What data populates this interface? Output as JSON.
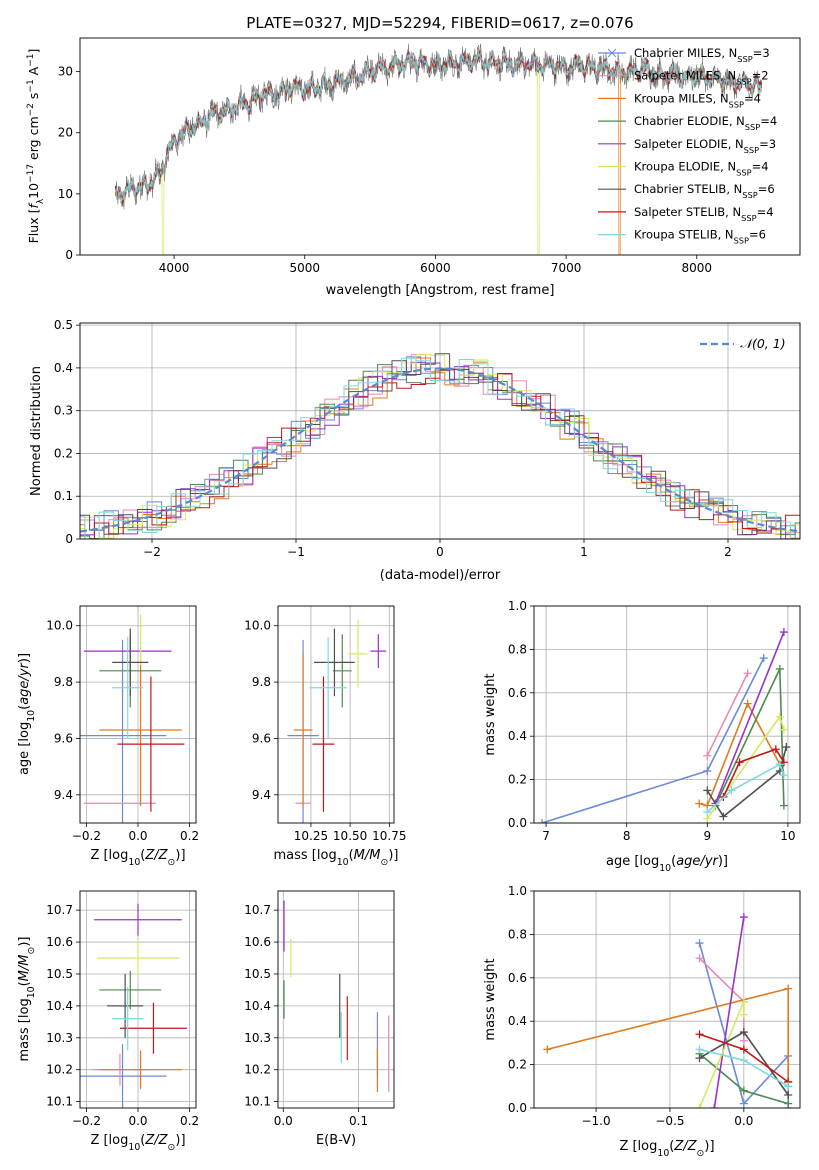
{
  "figure_title": "PLATE=0327, MJD=52294, FIBERID=0617, z=0.076",
  "colors": [
    "#6a8ad8",
    "#e8862a",
    "#e07a20",
    "#4f8a4f",
    "#9932cc",
    "#d4e860",
    "#505050",
    "#c01818",
    "#7fd8e0",
    "#e888b8"
  ],
  "chart_data": [
    {
      "type": "line",
      "id": "spectrum",
      "title": "PLATE=0327, MJD=52294, FIBERID=0617, z=0.076",
      "xlabel": "wavelength [Angstrom, rest frame]",
      "ylabel": "Flux [fλ10⁻¹⁷ erg cm⁻² s⁻¹ A⁻¹]",
      "xlim": [
        3280,
        8790
      ],
      "ylim": [
        0,
        35.5
      ],
      "xticks": [
        4000,
        5000,
        6000,
        7000,
        8000
      ],
      "yticks": [
        0,
        10,
        20,
        30
      ],
      "grid": false,
      "legend_position": "top-right",
      "anchor_x": [
        3550,
        3700,
        3800,
        3900,
        3950,
        4000,
        4100,
        4200,
        4300,
        4400,
        4500,
        4600,
        4700,
        4800,
        4900,
        5000,
        5100,
        5200,
        5300,
        5400,
        5500,
        5600,
        5700,
        5800,
        5900,
        6000,
        6100,
        6200,
        6300,
        6400,
        6500,
        6600,
        6700,
        6800,
        6900,
        7000,
        7100,
        7200,
        7300,
        7400,
        7500,
        7600,
        7700,
        7800,
        7900,
        8000,
        8100,
        8200,
        8300,
        8400,
        8500
      ],
      "anchor_y": [
        9.5,
        11.0,
        11.5,
        13.5,
        16.5,
        18.5,
        20.5,
        21.5,
        23.0,
        23.5,
        24.5,
        25.0,
        26.5,
        26.5,
        27.5,
        27.0,
        27.5,
        28.0,
        28.5,
        29.0,
        30.0,
        30.5,
        31.0,
        31.5,
        31.5,
        31.0,
        31.5,
        31.5,
        32.0,
        31.5,
        31.5,
        31.0,
        31.5,
        31.0,
        31.0,
        30.5,
        31.0,
        30.5,
        30.5,
        30.0,
        30.0,
        30.5,
        29.5,
        29.5,
        29.0,
        29.5,
        29.0,
        28.5,
        28.0,
        28.0,
        27.5
      ],
      "series": [
        {
          "name": "Chabrier MILES, NSSP=3",
          "color": "#6a8ad8"
        },
        {
          "name": "Salpeter MILES, NSSP=2",
          "color": "#e888b8"
        },
        {
          "name": "Kroupa MILES, NSSP=4",
          "color": "#e07a20"
        },
        {
          "name": "Chabrier ELODIE, NSSP=4",
          "color": "#4f8a4f"
        },
        {
          "name": "Salpeter ELODIE, NSSP=3",
          "color": "#9932cc"
        },
        {
          "name": "Kroupa ELODIE, NSSP=4",
          "color": "#d4e860"
        },
        {
          "name": "Chabrier STELIB, NSSP=6",
          "color": "#505050"
        },
        {
          "name": "Salpeter STELIB, NSSP=4",
          "color": "#c01818"
        },
        {
          "name": "Kroupa STELIB, NSSP=6",
          "color": "#7fd8e0"
        }
      ],
      "legend": [
        {
          "pre": "Chabrier MILES, N",
          "sub": "SSP",
          "post": "=3"
        },
        {
          "pre": "Salpeter MILES, N",
          "sub": "SSP",
          "post": "=2"
        },
        {
          "pre": "Kroupa MILES, N",
          "sub": "SSP",
          "post": "=4"
        },
        {
          "pre": "Chabrier ELODIE, N",
          "sub": "SSP",
          "post": "=4"
        },
        {
          "pre": "Salpeter ELODIE, N",
          "sub": "SSP",
          "post": "=3"
        },
        {
          "pre": "Kroupa ELODIE, N",
          "sub": "SSP",
          "post": "=4"
        },
        {
          "pre": "Chabrier STELIB, N",
          "sub": "SSP",
          "post": "=6"
        },
        {
          "pre": "Salpeter STELIB, N",
          "sub": "SSP",
          "post": "=4"
        },
        {
          "pre": "Kroupa STELIB, N",
          "sub": "SSP",
          "post": "=6"
        }
      ]
    },
    {
      "type": "histogram",
      "id": "residuals",
      "xlabel": "(data-model)/error",
      "ylabel": "Normed distribution",
      "xlim": [
        -2.5,
        2.5
      ],
      "ylim": [
        0,
        0.505
      ],
      "xticks": [
        -2,
        -1,
        0,
        1,
        2
      ],
      "yticks": [
        0.0,
        0.1,
        0.2,
        0.3,
        0.4,
        0.5
      ],
      "grid": true,
      "legend_position": "top-right",
      "legend_label": "𝒩(0, 1)",
      "bin_width": 0.1,
      "series_colors": [
        "#6a8ad8",
        "#e888b8",
        "#e07a20",
        "#4f8a4f",
        "#9932cc",
        "#d4e860",
        "#505050",
        "#c01818",
        "#7fd8e0"
      ]
    },
    {
      "type": "scatter",
      "id": "age-vs-Z",
      "xlabel": "Z [log10(Z/Z⊙)]",
      "ylabel": "age  [log10(age/yr)]",
      "xlim": [
        -0.225,
        0.225
      ],
      "ylim": [
        9.3,
        10.07
      ],
      "xticks": [
        -0.2,
        0.0,
        0.2
      ],
      "xticklabels": [
        "−0.2",
        "0.0",
        "0.2"
      ],
      "yticks": [
        9.4,
        9.6,
        9.8,
        10.0
      ],
      "yticklabels": [
        "9.4",
        "9.6",
        "9.8",
        "10.0"
      ],
      "grid": true,
      "points": [
        {
          "x": -0.06,
          "xerr": 0.17,
          "y": 9.61,
          "yerr": 0.34,
          "color": "#6a8ad8"
        },
        {
          "x": -0.07,
          "xerr": 0.14,
          "y": 9.37,
          "yerr": 0.0,
          "color": "#e888b8"
        },
        {
          "x": 0.01,
          "xerr": 0.16,
          "y": 9.63,
          "yerr": 0.27,
          "color": "#e07a20"
        },
        {
          "x": -0.03,
          "xerr": 0.12,
          "y": 9.84,
          "yerr": 0.13,
          "color": "#4f8a4f"
        },
        {
          "x": -0.04,
          "xerr": 0.17,
          "y": 9.91,
          "yerr": 0.0,
          "color": "#9932cc"
        },
        {
          "x": 0.01,
          "xerr": 0.0,
          "y": 9.95,
          "yerr": 0.09,
          "color": "#d4e860"
        },
        {
          "x": -0.03,
          "xerr": 0.07,
          "y": 9.87,
          "yerr": 0.12,
          "color": "#505050"
        },
        {
          "x": 0.05,
          "xerr": 0.13,
          "y": 9.58,
          "yerr": 0.24,
          "color": "#c01818"
        },
        {
          "x": -0.04,
          "xerr": 0.06,
          "y": 9.78,
          "yerr": 0.18,
          "color": "#7fd8e0"
        }
      ]
    },
    {
      "type": "scatter",
      "id": "age-vs-mass",
      "xlabel": "mass [log10(M/M⊙)]",
      "xlim": [
        10.04,
        10.78
      ],
      "ylim": [
        9.3,
        10.07
      ],
      "xticks": [
        10.25,
        10.5,
        10.75
      ],
      "xticklabels": [
        "10.25",
        "10.50",
        "10.75"
      ],
      "yticks": [
        9.4,
        9.6,
        9.8,
        10.0
      ],
      "yticklabels": [
        "9.4",
        "9.6",
        "9.8",
        "10.0"
      ],
      "grid": true,
      "points": [
        {
          "x": 10.2,
          "xerr": 0.1,
          "y": 9.61,
          "yerr": 0.34,
          "color": "#6a8ad8"
        },
        {
          "x": 10.2,
          "xerr": 0.05,
          "y": 9.37,
          "yerr": 0.0,
          "color": "#e888b8"
        },
        {
          "x": 10.2,
          "xerr": 0.06,
          "y": 9.63,
          "yerr": 0.27,
          "color": "#e07a20"
        },
        {
          "x": 10.45,
          "xerr": 0.06,
          "y": 9.84,
          "yerr": 0.13,
          "color": "#4f8a4f"
        },
        {
          "x": 10.68,
          "xerr": 0.05,
          "y": 9.91,
          "yerr": 0.06,
          "color": "#9932cc"
        },
        {
          "x": 10.55,
          "xerr": 0.06,
          "y": 9.9,
          "yerr": 0.12,
          "color": "#d4e860"
        },
        {
          "x": 10.4,
          "xerr": 0.13,
          "y": 9.87,
          "yerr": 0.12,
          "color": "#505050"
        },
        {
          "x": 10.33,
          "xerr": 0.07,
          "y": 9.58,
          "yerr": 0.24,
          "color": "#c01818"
        },
        {
          "x": 10.36,
          "xerr": 0.12,
          "y": 9.78,
          "yerr": 0.18,
          "color": "#7fd8e0"
        }
      ]
    },
    {
      "type": "line",
      "id": "weight-vs-age",
      "xlabel": "age  [log10(age/yr)]",
      "ylabel": "mass weight",
      "xlim": [
        6.85,
        10.15
      ],
      "ylim": [
        0,
        1.0
      ],
      "xticks": [
        7,
        8,
        9,
        10
      ],
      "xticklabels": [
        "7",
        "8",
        "9",
        "10"
      ],
      "yticks": [
        0.0,
        0.2,
        0.4,
        0.6,
        0.8,
        1.0
      ],
      "yticklabels": [
        "0.0",
        "0.2",
        "0.4",
        "0.6",
        "0.8",
        "1.0"
      ],
      "grid": true,
      "series": [
        {
          "color": "#6a8ad8",
          "x": [
            6.95,
            9.0,
            9.7
          ],
          "y": [
            0.0,
            0.24,
            0.76
          ]
        },
        {
          "color": "#e888b8",
          "x": [
            9.0,
            9.5
          ],
          "y": [
            0.31,
            0.69
          ]
        },
        {
          "color": "#e07a20",
          "x": [
            8.9,
            9.0,
            9.5,
            9.9
          ],
          "y": [
            0.09,
            0.08,
            0.55,
            0.27
          ]
        },
        {
          "color": "#4f8a4f",
          "x": [
            9.1,
            9.9,
            9.95
          ],
          "y": [
            0.08,
            0.71,
            0.08
          ]
        },
        {
          "color": "#9932cc",
          "x": [
            9.1,
            9.95
          ],
          "y": [
            0.09,
            0.88
          ]
        },
        {
          "color": "#d4e860",
          "x": [
            9.0,
            9.9,
            9.95
          ],
          "y": [
            0.02,
            0.49,
            0.43
          ]
        },
        {
          "color": "#505050",
          "x": [
            9.0,
            9.2,
            9.9,
            9.98
          ],
          "y": [
            0.15,
            0.03,
            0.24,
            0.35
          ]
        },
        {
          "color": "#c01818",
          "x": [
            9.2,
            9.4,
            9.85,
            9.95
          ],
          "y": [
            0.12,
            0.28,
            0.34,
            0.28
          ]
        },
        {
          "color": "#7fd8e0",
          "x": [
            9.0,
            9.3,
            9.9,
            9.95
          ],
          "y": [
            0.05,
            0.15,
            0.27,
            0.22
          ]
        }
      ]
    },
    {
      "type": "scatter",
      "id": "mass-vs-Z",
      "xlabel": "Z [log10(Z/Z⊙)]",
      "ylabel": "mass [log10(M/M⊙)]",
      "xlim": [
        -0.225,
        0.225
      ],
      "ylim": [
        10.08,
        10.76
      ],
      "xticks": [
        -0.2,
        0.0,
        0.2
      ],
      "xticklabels": [
        "−0.2",
        "0.0",
        "0.2"
      ],
      "yticks": [
        10.1,
        10.2,
        10.3,
        10.4,
        10.5,
        10.6,
        10.7
      ],
      "yticklabels": [
        "10.1",
        "10.2",
        "10.3",
        "10.4",
        "10.5",
        "10.6",
        "10.7"
      ],
      "grid": true,
      "points": [
        {
          "x": -0.06,
          "xerr": 0.17,
          "y": 10.18,
          "yerr": 0.1,
          "color": "#6a8ad8"
        },
        {
          "x": -0.07,
          "xerr": 0.11,
          "y": 10.2,
          "yerr": 0.05,
          "color": "#e888b8"
        },
        {
          "x": 0.01,
          "xerr": 0.16,
          "y": 10.2,
          "yerr": 0.06,
          "color": "#e07a20"
        },
        {
          "x": -0.03,
          "xerr": 0.12,
          "y": 10.45,
          "yerr": 0.06,
          "color": "#4f8a4f"
        },
        {
          "x": 0.0,
          "xerr": 0.17,
          "y": 10.67,
          "yerr": 0.05,
          "color": "#9932cc"
        },
        {
          "x": 0.0,
          "xerr": 0.16,
          "y": 10.55,
          "yerr": 0.06,
          "color": "#d4e860"
        },
        {
          "x": -0.05,
          "xerr": 0.07,
          "y": 10.4,
          "yerr": 0.1,
          "color": "#505050"
        },
        {
          "x": 0.06,
          "xerr": 0.13,
          "y": 10.33,
          "yerr": 0.08,
          "color": "#c01818"
        },
        {
          "x": -0.04,
          "xerr": 0.06,
          "y": 10.36,
          "yerr": 0.1,
          "color": "#7fd8e0"
        }
      ]
    },
    {
      "type": "scatter",
      "id": "mass-vs-ebv",
      "xlabel": "E(B-V)",
      "xlim": [
        -0.007,
        0.147
      ],
      "ylim": [
        10.08,
        10.76
      ],
      "xticks": [
        0.0,
        0.1
      ],
      "xticklabels": [
        "0.0",
        "0.1"
      ],
      "yticks": [
        10.1,
        10.2,
        10.3,
        10.4,
        10.5,
        10.6,
        10.7
      ],
      "yticklabels": [
        "10.1",
        "10.2",
        "10.3",
        "10.4",
        "10.5",
        "10.6",
        "10.7"
      ],
      "grid": true,
      "points": [
        {
          "x": 0.125,
          "xerr": 0,
          "y": 10.28,
          "yerr": 0.1,
          "color": "#6a8ad8"
        },
        {
          "x": 0.14,
          "xerr": 0,
          "y": 10.25,
          "yerr": 0.12,
          "color": "#e888b8"
        },
        {
          "x": 0.125,
          "xerr": 0,
          "y": 10.2,
          "yerr": 0.07,
          "color": "#e07a20"
        },
        {
          "x": 0.001,
          "xerr": 0,
          "y": 10.42,
          "yerr": 0.06,
          "color": "#4f8a4f"
        },
        {
          "x": 0.001,
          "xerr": 0,
          "y": 10.65,
          "yerr": 0.08,
          "color": "#9932cc"
        },
        {
          "x": 0.01,
          "xerr": 0,
          "y": 10.55,
          "yerr": 0.06,
          "color": "#d4e860"
        },
        {
          "x": 0.075,
          "xerr": 0,
          "y": 10.4,
          "yerr": 0.1,
          "color": "#505050"
        },
        {
          "x": 0.085,
          "xerr": 0,
          "y": 10.33,
          "yerr": 0.1,
          "color": "#c01818"
        },
        {
          "x": 0.077,
          "xerr": 0,
          "y": 10.3,
          "yerr": 0.08,
          "color": "#7fd8e0"
        }
      ]
    },
    {
      "type": "line",
      "id": "weight-vs-Z",
      "xlabel": "Z [log10(Z/Z⊙)]",
      "ylabel": "mass weight",
      "xlim": [
        -1.42,
        0.38
      ],
      "ylim": [
        0,
        1.0
      ],
      "xticks": [
        -1.0,
        -0.5,
        0.0
      ],
      "xticklabels": [
        "−1.0",
        "−0.5",
        "0.0"
      ],
      "yticks": [
        0.0,
        0.2,
        0.4,
        0.6,
        0.8,
        1.0
      ],
      "yticklabels": [
        "0.0",
        "0.2",
        "0.4",
        "0.6",
        "0.8",
        "1.0"
      ],
      "grid": true,
      "series": [
        {
          "color": "#6a8ad8",
          "x": [
            -0.3,
            0.0,
            0.3,
            0.3
          ],
          "y": [
            0.76,
            0.02,
            0.24,
            0.0
          ]
        },
        {
          "color": "#e888b8",
          "x": [
            -0.3,
            0.0,
            0.0
          ],
          "y": [
            0.69,
            0.49,
            0.31
          ]
        },
        {
          "color": "#e07a20",
          "x": [
            -1.33,
            0.3,
            0.3
          ],
          "y": [
            0.27,
            0.55,
            0.12
          ]
        },
        {
          "color": "#4f8a4f",
          "x": [
            -0.3,
            0.0,
            0.3
          ],
          "y": [
            0.25,
            0.08,
            0.02
          ]
        },
        {
          "color": "#9932cc",
          "x": [
            0.0,
            -0.2
          ],
          "y": [
            0.88,
            0.0
          ]
        },
        {
          "color": "#d4e860",
          "x": [
            -0.3,
            0.0,
            0.0
          ],
          "y": [
            0.0,
            0.49,
            0.43
          ]
        },
        {
          "color": "#505050",
          "x": [
            -0.3,
            0.0,
            0.3
          ],
          "y": [
            0.23,
            0.35,
            0.06
          ]
        },
        {
          "color": "#c01818",
          "x": [
            -0.3,
            0.0,
            0.3
          ],
          "y": [
            0.34,
            0.27,
            0.12
          ]
        },
        {
          "color": "#7fd8e0",
          "x": [
            -0.3,
            0.0,
            0.3
          ],
          "y": [
            0.27,
            0.22,
            0.1
          ]
        }
      ]
    }
  ]
}
